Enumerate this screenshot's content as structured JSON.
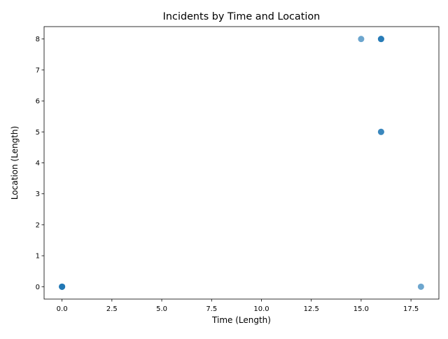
{
  "chart_data": {
    "type": "scatter",
    "title": "Incidents by Time and Location",
    "xlabel": "Time (Length)",
    "ylabel": "Location (Length)",
    "xlim": [
      -0.9,
      18.9
    ],
    "ylim": [
      -0.4,
      8.4
    ],
    "xticks": [
      0,
      2.5,
      5,
      7.5,
      10,
      12.5,
      15,
      17.5
    ],
    "xtick_labels": [
      "0.0",
      "2.5",
      "5.0",
      "7.5",
      "10.0",
      "12.5",
      "15.0",
      "17.5"
    ],
    "yticks": [
      0,
      1,
      2,
      3,
      4,
      5,
      6,
      7,
      8
    ],
    "ytick_labels": [
      "0",
      "1",
      "2",
      "3",
      "4",
      "5",
      "6",
      "7",
      "8"
    ],
    "grid": false,
    "marker_color": "#1f77b4",
    "marker_alpha": 0.65,
    "points": [
      {
        "x": 0,
        "y": 0
      },
      {
        "x": 0,
        "y": 0
      },
      {
        "x": 0,
        "y": 0
      },
      {
        "x": 0,
        "y": 0
      },
      {
        "x": 15,
        "y": 8
      },
      {
        "x": 16,
        "y": 8
      },
      {
        "x": 16,
        "y": 8
      },
      {
        "x": 16,
        "y": 8
      },
      {
        "x": 16,
        "y": 5
      },
      {
        "x": 16,
        "y": 5
      },
      {
        "x": 18,
        "y": 0
      }
    ]
  }
}
